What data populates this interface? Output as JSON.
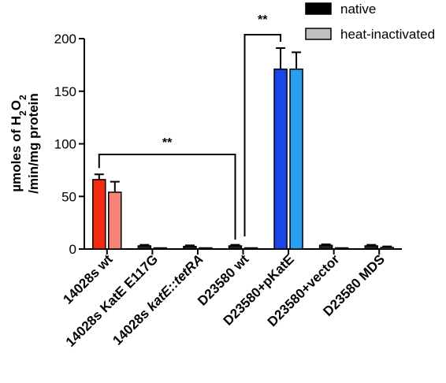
{
  "chart_data": {
    "type": "bar",
    "ylabel_line1_prefix": "µmoles of H",
    "ylabel_line1_sub1": "2",
    "ylabel_line1_mid": "O",
    "ylabel_line1_sub2": "2",
    "ylabel_line2": "/min/mg protein",
    "ylim": [
      0,
      200
    ],
    "yticks": [
      0,
      50,
      100,
      150,
      200
    ],
    "categories": [
      {
        "parts": [
          {
            "text": "14028s wt",
            "italic": false
          }
        ]
      },
      {
        "parts": [
          {
            "text": "14028s KatE E117G",
            "italic": false
          }
        ]
      },
      {
        "parts": [
          {
            "text": "14028s ",
            "italic": false
          },
          {
            "text": "katE::tetRA",
            "italic": true
          }
        ]
      },
      {
        "parts": [
          {
            "text": "D23580 wt",
            "italic": false
          }
        ]
      },
      {
        "parts": [
          {
            "text": "D23580+pKatE",
            "italic": false
          }
        ]
      },
      {
        "parts": [
          {
            "text": "D23580+vector",
            "italic": false
          }
        ]
      },
      {
        "parts": [
          {
            "text": "D23580 MDS",
            "italic": false
          }
        ]
      }
    ],
    "series": [
      {
        "name": "native",
        "values": [
          66,
          3,
          2.5,
          3,
          171,
          3.5,
          3
        ],
        "errors": [
          5,
          1,
          1,
          1,
          20,
          1,
          1
        ]
      },
      {
        "name": "heat-inactivated",
        "values": [
          54,
          0.3,
          0.3,
          0.3,
          171,
          0.3,
          1.5
        ],
        "errors": [
          10,
          0,
          0,
          0,
          16,
          0,
          1
        ]
      }
    ],
    "bar_colors": [
      [
        "#f42a12",
        "#f58477"
      ],
      [
        "#222222",
        "#9a9a9a"
      ],
      [
        "#222222",
        "#9a9a9a"
      ],
      [
        "#222222",
        "#9a9a9a"
      ],
      [
        "#1c45e6",
        "#2a9ef0"
      ],
      [
        "#222222",
        "#9a9a9a"
      ],
      [
        "#222222",
        "#9a9a9a"
      ]
    ],
    "legend": {
      "placement": "top-right",
      "entries": [
        {
          "label": "native",
          "color": "#000000"
        },
        {
          "label": "heat-inactivated",
          "color": "#c0c0c0"
        }
      ]
    },
    "annotations": [
      {
        "text": "**",
        "from_category": 0,
        "to_category": 3
      },
      {
        "text": "**",
        "from_category": 3,
        "to_category": 4
      }
    ]
  }
}
